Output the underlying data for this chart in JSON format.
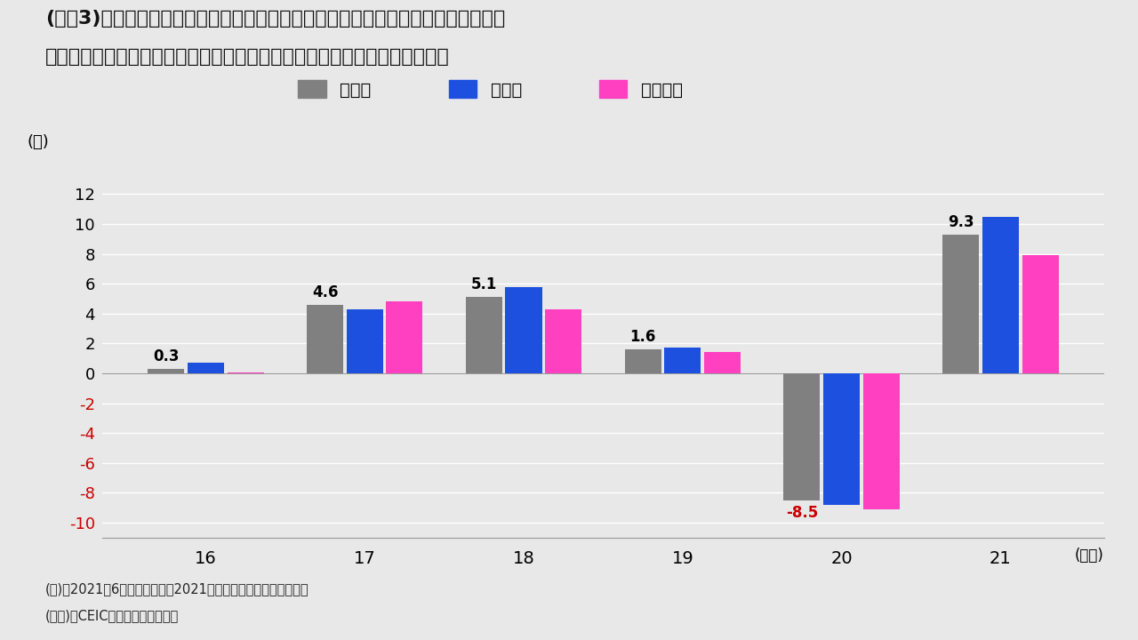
{
  "title_line1": "(図衐3)　日本：日銀短観による設備投資の前年度比伸び率　（ソフトウェアと研究",
  "title_line2": "　　　　　開発を含み、土地投資を含まないベース。全規模全産業の計数）",
  "years": [
    "16",
    "17",
    "18",
    "19",
    "20",
    "21"
  ],
  "zen_sangyo": [
    0.3,
    4.6,
    5.1,
    1.6,
    -8.5,
    9.3
  ],
  "seizo": [
    0.7,
    4.3,
    5.8,
    1.7,
    -8.8,
    10.5
  ],
  "hi_seizo": [
    0.05,
    4.8,
    4.3,
    1.4,
    -9.1,
    7.9
  ],
  "zen_color": "#808080",
  "seizo_color": "#1E50E0",
  "hi_color": "#FF40C0",
  "legend_label_0": "全産業",
  "legend_label_1": "製造業",
  "legend_label_2": "非製造業",
  "ylabel": "(％)",
  "xlabel": "(年度)",
  "ylim_min": -11,
  "ylim_max": 13,
  "yticks": [
    -10,
    -8,
    -6,
    -4,
    -2,
    0,
    2,
    4,
    6,
    8,
    10,
    12
  ],
  "background_color": "#E8E8E8",
  "annotation_red": "#CC0000",
  "note1": "(注)　2021年6月調査による　2021年度分は企業の計画ベース。",
  "note2": "(出所)　CEICよりインベスコ作成"
}
